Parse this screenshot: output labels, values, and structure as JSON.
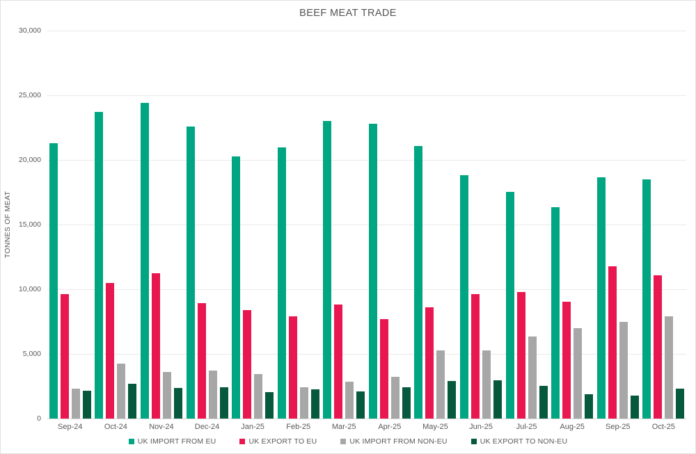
{
  "title": "BEEF MEAT TRADE",
  "chart_data": {
    "type": "bar",
    "title": "BEEF MEAT TRADE",
    "xlabel": "",
    "ylabel": "TONNES OF MEAT",
    "ylim": [
      0,
      30000
    ],
    "yticks": [
      0,
      5000,
      10000,
      15000,
      20000,
      25000,
      30000
    ],
    "grid": true,
    "legend_position": "bottom",
    "categories": [
      "Sep-24",
      "Oct-24",
      "Nov-24",
      "Dec-24",
      "Jan-25",
      "Feb-25",
      "Mar-25",
      "Apr-25",
      "May-25",
      "Jun-25",
      "Jul-25",
      "Aug-25",
      "Sep-25",
      "Oct-25"
    ],
    "series": [
      {
        "name": "UK IMPORT FROM EU",
        "color": "#00A682",
        "values": [
          21300,
          23700,
          24400,
          22600,
          20250,
          20950,
          23000,
          22800,
          21050,
          18800,
          17550,
          16350,
          18650,
          18500
        ]
      },
      {
        "name": "UK EXPORT TO EU",
        "color": "#E9174F",
        "values": [
          9600,
          10500,
          11250,
          8900,
          8400,
          7900,
          8800,
          7700,
          8600,
          9600,
          9800,
          9050,
          11800,
          11100
        ]
      },
      {
        "name": "UK IMPORT FROM NON-EU",
        "color": "#A7A7A7",
        "values": [
          2300,
          4250,
          3600,
          3700,
          3450,
          2400,
          2850,
          3250,
          5250,
          5250,
          6350,
          7000,
          7450,
          7900
        ]
      },
      {
        "name": "UK EXPORT TO NON-EU",
        "color": "#07593E",
        "values": [
          2150,
          2700,
          2350,
          2400,
          2050,
          2250,
          2100,
          2400,
          2900,
          2950,
          2550,
          1900,
          1800,
          2300
        ]
      }
    ]
  },
  "colors": {
    "text": "#595959",
    "gridline": "#E9E9E9",
    "baseline": "#D6D6D6",
    "panel_border": "#E1E1E1",
    "background": "#FFFFFF"
  }
}
